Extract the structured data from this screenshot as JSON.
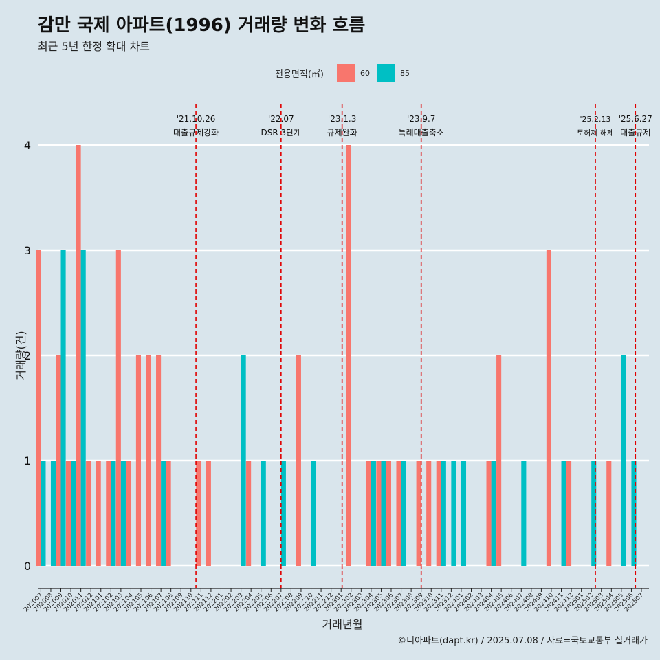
{
  "title": "감만 국제 아파트(1996) 거래량 변화 흐름",
  "subtitle": "최근 5년 한정 확대 차트",
  "footer": "©디아파트(dapt.kr) / 2025.07.08 / 자료=국토교통부 실거래가",
  "colors": {
    "background": "#d9e5ec",
    "series60": "#f8766d",
    "series85": "#00bfc4",
    "event_line": "#e00000",
    "grid": "#ffffff"
  },
  "chart_data": {
    "type": "bar",
    "title": "감만 국제 아파트(1996) 거래량 변화 흐름",
    "xlabel": "거래년월",
    "ylabel": "거래량(건)",
    "ylim": [
      0,
      4
    ],
    "yticks": [
      0,
      1,
      2,
      3,
      4
    ],
    "legend_title": "전용면적(㎡)",
    "legend_position": "top",
    "categories": [
      "202007",
      "202008",
      "202009",
      "202010",
      "202011",
      "202012",
      "202101",
      "202102",
      "202103",
      "202104",
      "202105",
      "202106",
      "202107",
      "202108",
      "202109",
      "202110",
      "202111",
      "202112",
      "202201",
      "202202",
      "202203",
      "202204",
      "202205",
      "202206",
      "202207",
      "202208",
      "202209",
      "202210",
      "202211",
      "202212",
      "202301",
      "202302",
      "202303",
      "202304",
      "202305",
      "202306",
      "202307",
      "202308",
      "202309",
      "202310",
      "202311",
      "202312",
      "202401",
      "202402",
      "202403",
      "202404",
      "202405",
      "202406",
      "202407",
      "202408",
      "202409",
      "202410",
      "202411",
      "202412",
      "202501",
      "202502",
      "202503",
      "202504",
      "202505",
      "202506",
      "202507"
    ],
    "series": [
      {
        "name": "60",
        "values": [
          3,
          0,
          2,
          1,
          4,
          1,
          1,
          1,
          3,
          1,
          2,
          2,
          2,
          1,
          0,
          0,
          1,
          1,
          0,
          0,
          0,
          1,
          0,
          0,
          0,
          0,
          2,
          0,
          0,
          0,
          0,
          4,
          0,
          1,
          1,
          1,
          1,
          0,
          1,
          1,
          1,
          0,
          0,
          0,
          0,
          1,
          2,
          0,
          0,
          0,
          0,
          3,
          0,
          1,
          0,
          0,
          0,
          1,
          0,
          0,
          0
        ]
      },
      {
        "name": "85",
        "values": [
          1,
          1,
          3,
          1,
          3,
          0,
          0,
          1,
          1,
          0,
          0,
          0,
          1,
          0,
          0,
          0,
          0,
          0,
          0,
          0,
          2,
          0,
          1,
          0,
          1,
          0,
          0,
          1,
          0,
          0,
          0,
          0,
          0,
          1,
          1,
          0,
          1,
          0,
          0,
          0,
          1,
          1,
          1,
          0,
          0,
          1,
          0,
          0,
          1,
          0,
          0,
          0,
          1,
          0,
          0,
          1,
          0,
          0,
          2,
          1,
          0
        ]
      }
    ],
    "events": [
      {
        "date": "'21.10.26",
        "label": "대출규제강화",
        "index": 15.5
      },
      {
        "date": "'22.07",
        "label": "DSR 3단계",
        "index": 24.0
      },
      {
        "date": "'23.1.3",
        "label": "규제완화",
        "index": 30.1
      },
      {
        "date": "'23.9.7",
        "label": "특례대출축소",
        "index": 38.0
      },
      {
        "date": "'25.2.13",
        "label": "토허제 해제",
        "index": 55.4
      },
      {
        "date": "'25.6.27",
        "label": "대출규제",
        "index": 59.4
      }
    ]
  }
}
